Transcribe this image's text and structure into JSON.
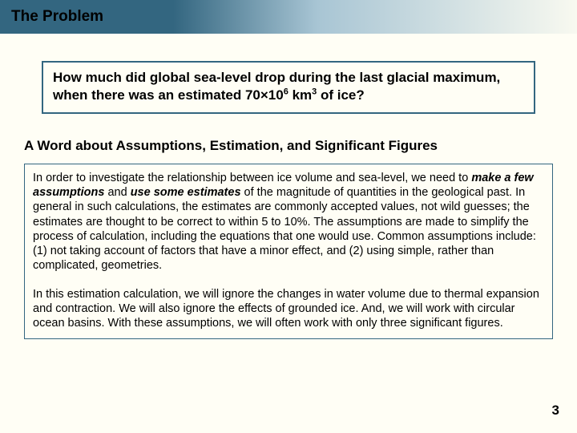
{
  "colors": {
    "header_dark": "#336680",
    "header_light": "#a8c5d4",
    "background": "#fffef5",
    "border": "#336680",
    "text": "#000000"
  },
  "typography": {
    "header_title_size": 19,
    "question_size": 17,
    "section_heading_size": 17,
    "body_size": 14.5,
    "page_number_size": 17,
    "font_family": "Arial"
  },
  "header": {
    "title": "The Problem"
  },
  "question": {
    "prefix": "How much did global sea-level drop during the last glacial maximum, when there was an estimated 70×10",
    "sup1": "6",
    "mid": " km",
    "sup2": "3",
    "suffix": " of ice?"
  },
  "section_heading": "A Word about Assumptions, Estimation, and Significant Figures",
  "body": {
    "p1_a": "In order to investigate the relationship between ice volume and sea-level, we need to ",
    "p1_emph1": "make a few assumptions",
    "p1_b": " and ",
    "p1_emph2": "use some estimates",
    "p1_c": " of the magnitude of quantities in the geological past. In general in such calculations, the estimates are commonly accepted values, not wild guesses; the estimates are thought to be correct to within 5 to 10%.  The assumptions are made to simplify the process of calculation, including the equations that one would use.  Common assumptions include: (1) not taking account of factors that have a minor effect, and (2) using simple, rather than complicated, geometries.",
    "p2": "In this estimation calculation, we will ignore the changes in water volume due to thermal expansion and contraction.  We will also ignore the effects of grounded ice.  And, we will work with circular ocean basins.  With these assumptions, we will often work with only three significant figures."
  },
  "page_number": "3"
}
